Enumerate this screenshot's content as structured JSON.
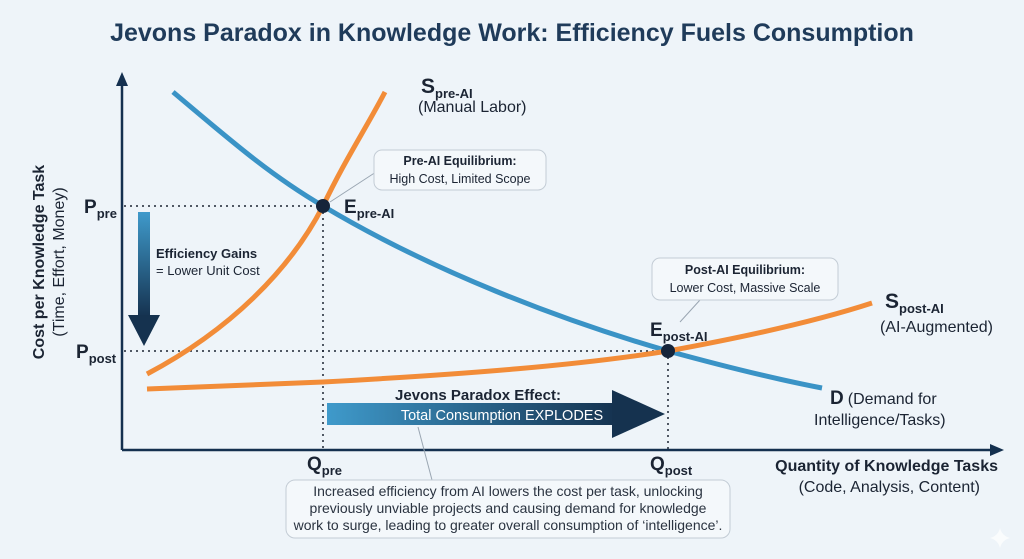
{
  "title": "Jevons Paradox in Knowledge Work: Efficiency Fuels Consumption",
  "y_axis": {
    "label": "Cost per Knowledge Task",
    "sublabel": "(Time, Effort, Money)"
  },
  "x_axis": {
    "label": "Quantity of Knowledge Tasks",
    "sublabel": "(Code, Analysis, Content)"
  },
  "price_labels": {
    "pre_main": "P",
    "pre_sub": "pre",
    "post_main": "P",
    "post_sub": "post"
  },
  "quantity_labels": {
    "pre_main": "Q",
    "pre_sub": "pre",
    "post_main": "Q",
    "post_sub": "post"
  },
  "curves": {
    "supply_pre": {
      "main": "S",
      "sub": "pre-AI",
      "desc": "(Manual Labor)",
      "color": "#f28c38"
    },
    "supply_post": {
      "main": "S",
      "sub": "post-AI",
      "desc": "(AI-Augmented)",
      "color": "#f28c38"
    },
    "demand": {
      "main": "D",
      "desc1": "(Demand for",
      "desc2": "Intelligence/Tasks)",
      "color": "#3a93c6"
    }
  },
  "equilibria": {
    "pre": {
      "main": "E",
      "sub": "pre-AI",
      "callout_title": "Pre-AI Equilibrium:",
      "callout_text": "High Cost, Limited Scope"
    },
    "post": {
      "main": "E",
      "sub": "post-AI",
      "callout_title": "Post-AI Equilibrium:",
      "callout_text": "Lower Cost, Massive Scale"
    }
  },
  "efficiency": {
    "title": "Efficiency Gains",
    "text": "= Lower Unit Cost"
  },
  "jevons": {
    "title": "Jevons Paradox Effect:",
    "text": "Total Consumption EXPLODES"
  },
  "note": {
    "line1": "Increased efficiency from AI lowers the cost per task, unlocking",
    "line2": "previously unviable projects and causing demand for knowledge",
    "line3": "work to surge, leading to greater overall consumption of ‘intelligence’."
  },
  "colors": {
    "axis": "#14304f",
    "title": "#1f3b5a",
    "background": "#eef4f9"
  }
}
